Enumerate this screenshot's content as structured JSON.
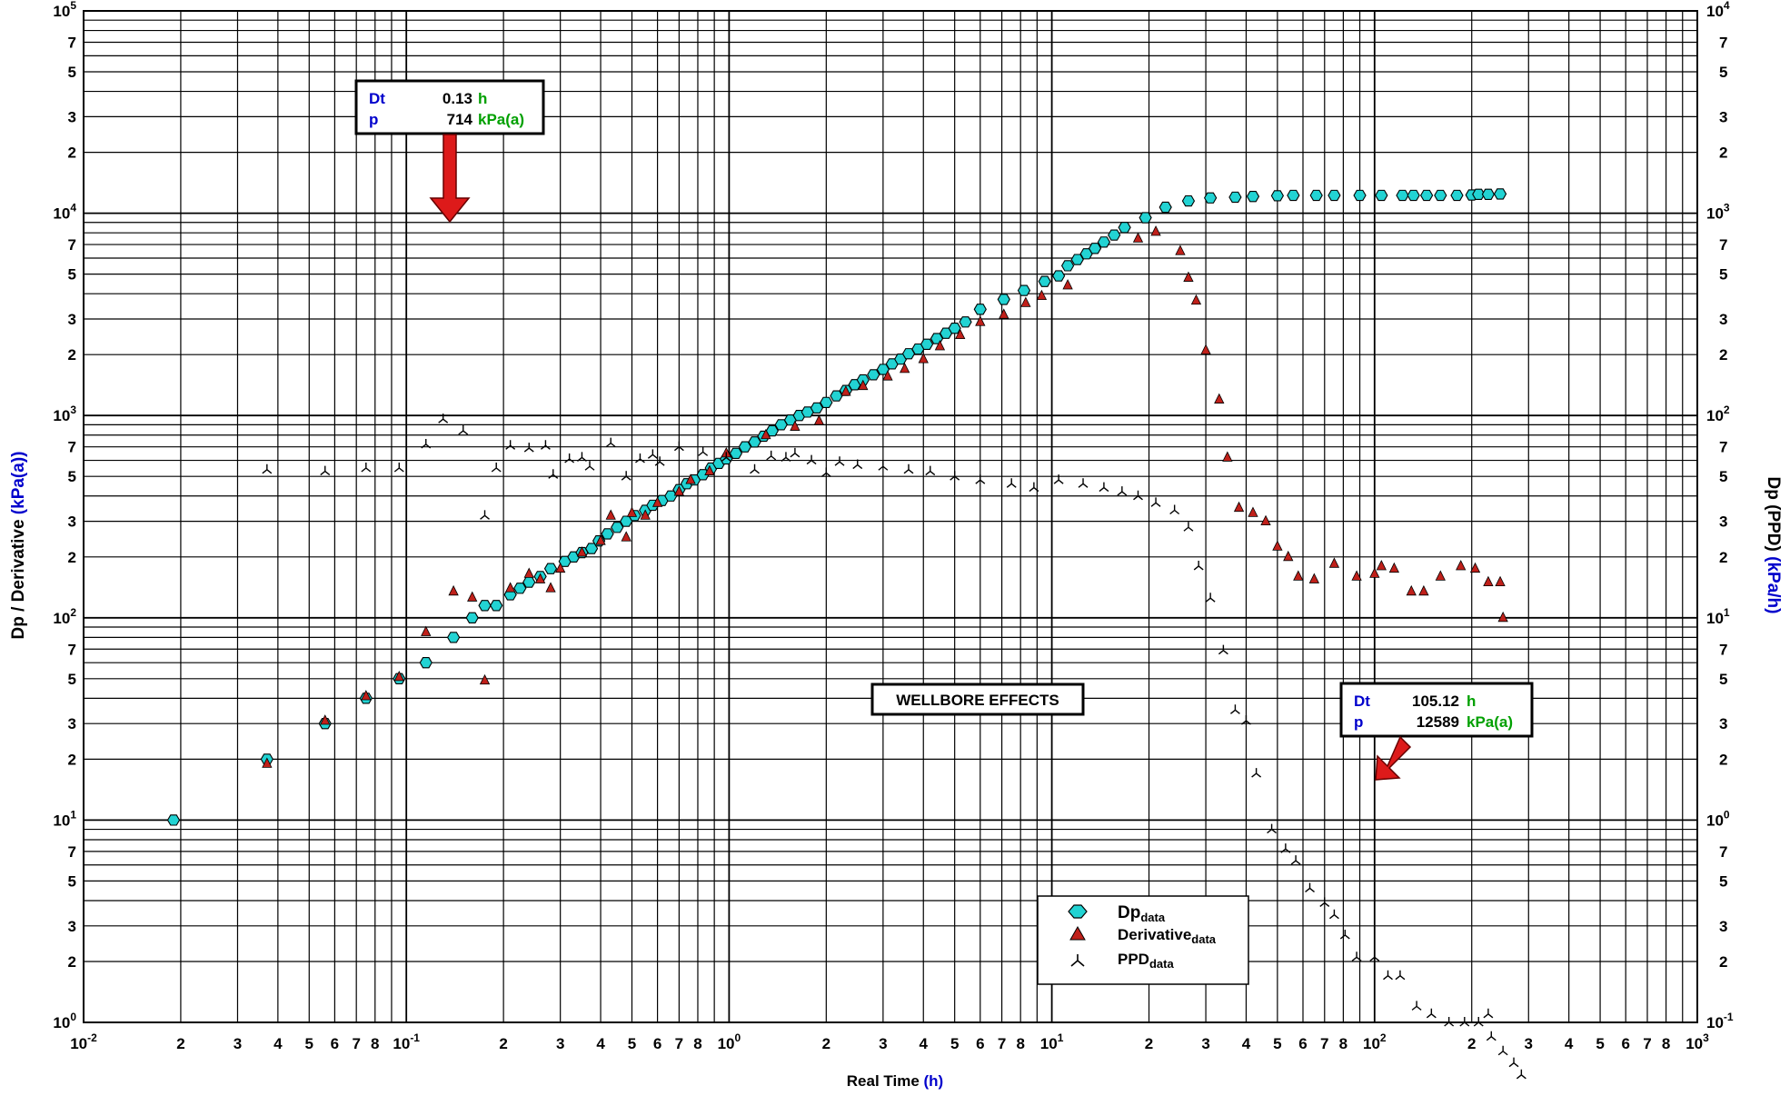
{
  "colors": {
    "dp_fill": "#22d3d3",
    "derivative_fill": "#c0201a",
    "ppd_stroke": "#000000",
    "label_blue": "#0000cc",
    "label_green": "#00a000",
    "arrow_red": "#dd1a1a"
  },
  "axes": {
    "xlabel": "Real Time",
    "xlabel_unit": "(h)",
    "ylabel_left": "Dp / Derivative",
    "ylabel_left_unit": "(kPa(a))",
    "ylabel_right": "Dp (PPD)",
    "ylabel_right_unit": "(kPa/h)"
  },
  "annotations": {
    "callout1": {
      "dt_label": "Dt",
      "dt_value": "0.13",
      "dt_unit": "h",
      "p_label": "p",
      "p_value": "714",
      "p_unit": "kPa(a)",
      "target_time": 0.13,
      "target_value": 9600
    },
    "callout2": {
      "dt_label": "Dt",
      "dt_value": "105.12",
      "dt_unit": "h",
      "p_label": "p",
      "p_value": "12589",
      "p_unit": "kPa(a)",
      "target_time": 105,
      "target_value": 17
    },
    "region_label": "WELLBORE EFFECTS"
  },
  "legend": {
    "dp": {
      "main": "Dp",
      "sub": "data",
      "icon": "cyan-hexagon-marker"
    },
    "derivative": {
      "main": "Derivative",
      "sub": "data",
      "icon": "red-triangle-marker"
    },
    "ppd": {
      "main": "PPD",
      "sub": "data",
      "icon": "tri-star-marker"
    }
  },
  "chart_data": {
    "type": "scatter",
    "x_scale": "log",
    "y_scale": "log",
    "xlim": [
      0.01,
      1000
    ],
    "ylim": [
      1,
      100000
    ],
    "ylim_right": [
      0.1,
      10000
    ],
    "grid": true,
    "legend_position": "bottom-center",
    "x_major_ticks": [
      {
        "base": "10",
        "exp": "-2"
      },
      {
        "base": "10",
        "exp": "-1"
      },
      {
        "base": "10",
        "exp": "0"
      },
      {
        "base": "10",
        "exp": "1"
      },
      {
        "base": "10",
        "exp": "2"
      },
      {
        "base": "10",
        "exp": "3"
      }
    ],
    "y_left_major_ticks": [
      {
        "base": "10",
        "exp": "0"
      },
      {
        "base": "10",
        "exp": "1"
      },
      {
        "base": "10",
        "exp": "2"
      },
      {
        "base": "10",
        "exp": "3"
      },
      {
        "base": "10",
        "exp": "4"
      },
      {
        "base": "10",
        "exp": "5"
      }
    ],
    "y_right_major_ticks": [
      {
        "base": "10",
        "exp": "-1"
      },
      {
        "base": "10",
        "exp": "0"
      },
      {
        "base": "10",
        "exp": "1"
      },
      {
        "base": "10",
        "exp": "2"
      },
      {
        "base": "10",
        "exp": "3"
      },
      {
        "base": "10",
        "exp": "4"
      }
    ],
    "minor_tick_labels": [
      "2",
      "3",
      "4",
      "5",
      "6",
      "7",
      "8"
    ],
    "y_minor_tick_labels": [
      "2",
      "3",
      "5",
      "7"
    ],
    "series": [
      {
        "name": "Dp_data",
        "marker": "hexagon",
        "axis": "left",
        "points": [
          [
            0.019,
            10
          ],
          [
            0.037,
            20
          ],
          [
            0.056,
            30
          ],
          [
            0.075,
            40
          ],
          [
            0.095,
            50
          ],
          [
            0.115,
            60
          ],
          [
            0.14,
            80
          ],
          [
            0.16,
            100
          ],
          [
            0.175,
            115
          ],
          [
            0.19,
            115
          ],
          [
            0.21,
            130
          ],
          [
            0.225,
            140
          ],
          [
            0.24,
            150
          ],
          [
            0.26,
            160
          ],
          [
            0.28,
            175
          ],
          [
            0.31,
            190
          ],
          [
            0.33,
            200
          ],
          [
            0.35,
            210
          ],
          [
            0.375,
            220
          ],
          [
            0.395,
            240
          ],
          [
            0.42,
            260
          ],
          [
            0.45,
            280
          ],
          [
            0.48,
            300
          ],
          [
            0.51,
            320
          ],
          [
            0.55,
            340
          ],
          [
            0.58,
            360
          ],
          [
            0.62,
            380
          ],
          [
            0.66,
            400
          ],
          [
            0.7,
            430
          ],
          [
            0.74,
            460
          ],
          [
            0.78,
            480
          ],
          [
            0.83,
            510
          ],
          [
            0.88,
            550
          ],
          [
            0.93,
            580
          ],
          [
            0.98,
            610
          ],
          [
            1.05,
            650
          ],
          [
            1.12,
            700
          ],
          [
            1.2,
            740
          ],
          [
            1.28,
            790
          ],
          [
            1.36,
            840
          ],
          [
            1.45,
            900
          ],
          [
            1.55,
            950
          ],
          [
            1.65,
            1000
          ],
          [
            1.75,
            1040
          ],
          [
            1.87,
            1090
          ],
          [
            2.0,
            1160
          ],
          [
            2.15,
            1250
          ],
          [
            2.3,
            1330
          ],
          [
            2.45,
            1420
          ],
          [
            2.6,
            1500
          ],
          [
            2.8,
            1590
          ],
          [
            3.0,
            1690
          ],
          [
            3.2,
            1800
          ],
          [
            3.4,
            1900
          ],
          [
            3.6,
            2020
          ],
          [
            3.85,
            2130
          ],
          [
            4.1,
            2250
          ],
          [
            4.4,
            2400
          ],
          [
            4.7,
            2550
          ],
          [
            5.0,
            2700
          ],
          [
            5.4,
            2900
          ],
          [
            6.0,
            3350
          ],
          [
            7.1,
            3750
          ],
          [
            8.2,
            4150
          ],
          [
            9.5,
            4600
          ],
          [
            10.5,
            4900
          ],
          [
            11.2,
            5500
          ],
          [
            12.0,
            5900
          ],
          [
            12.8,
            6300
          ],
          [
            13.6,
            6700
          ],
          [
            14.5,
            7200
          ],
          [
            15.6,
            7800
          ],
          [
            16.8,
            8500
          ],
          [
            19.5,
            9500
          ],
          [
            22.5,
            10700
          ],
          [
            26.5,
            11500
          ],
          [
            31.0,
            11900
          ],
          [
            37.0,
            12000
          ],
          [
            42.0,
            12100
          ],
          [
            50.0,
            12200
          ],
          [
            56.0,
            12250
          ],
          [
            66.0,
            12250
          ],
          [
            75.0,
            12250
          ],
          [
            90.0,
            12250
          ],
          [
            105.0,
            12250
          ],
          [
            122.0,
            12250
          ],
          [
            132.0,
            12250
          ],
          [
            145.0,
            12250
          ],
          [
            160.0,
            12250
          ],
          [
            180.0,
            12250
          ],
          [
            200.0,
            12300
          ],
          [
            210.0,
            12400
          ],
          [
            225.0,
            12400
          ],
          [
            245.0,
            12450
          ]
        ]
      },
      {
        "name": "Derivative_data",
        "marker": "triangle",
        "axis": "left",
        "points": [
          [
            0.037,
            19
          ],
          [
            0.056,
            31
          ],
          [
            0.075,
            41
          ],
          [
            0.095,
            51
          ],
          [
            0.115,
            85
          ],
          [
            0.14,
            135
          ],
          [
            0.16,
            126
          ],
          [
            0.175,
            49
          ],
          [
            0.21,
            140
          ],
          [
            0.24,
            165
          ],
          [
            0.26,
            155
          ],
          [
            0.28,
            140
          ],
          [
            0.3,
            175
          ],
          [
            0.35,
            210
          ],
          [
            0.4,
            240
          ],
          [
            0.43,
            320
          ],
          [
            0.48,
            250
          ],
          [
            0.5,
            330
          ],
          [
            0.55,
            320
          ],
          [
            0.6,
            370
          ],
          [
            0.7,
            420
          ],
          [
            0.76,
            480
          ],
          [
            0.87,
            530
          ],
          [
            0.98,
            650
          ],
          [
            1.3,
            800
          ],
          [
            1.6,
            880
          ],
          [
            1.9,
            940
          ],
          [
            2.3,
            1310
          ],
          [
            2.6,
            1400
          ],
          [
            3.1,
            1560
          ],
          [
            3.5,
            1700
          ],
          [
            4.0,
            1900
          ],
          [
            4.5,
            2200
          ],
          [
            5.2,
            2500
          ],
          [
            6.0,
            2900
          ],
          [
            7.1,
            3150
          ],
          [
            8.3,
            3600
          ],
          [
            9.3,
            3900
          ],
          [
            11.2,
            4400
          ],
          [
            18.5,
            7500
          ],
          [
            21.0,
            8100
          ],
          [
            25.0,
            6500
          ],
          [
            26.5,
            4800
          ],
          [
            28.0,
            3700
          ],
          [
            30.0,
            2100
          ],
          [
            33.0,
            1200
          ],
          [
            35.0,
            620
          ],
          [
            38.0,
            350
          ],
          [
            42.0,
            330
          ],
          [
            46.0,
            300
          ],
          [
            50.0,
            225
          ],
          [
            54.0,
            200
          ],
          [
            58.0,
            160
          ],
          [
            65.0,
            155
          ],
          [
            75.0,
            185
          ],
          [
            88.0,
            160
          ],
          [
            100.0,
            165
          ],
          [
            105.0,
            180
          ],
          [
            115.0,
            175
          ],
          [
            130.0,
            135
          ],
          [
            142.0,
            135
          ],
          [
            160.0,
            160
          ],
          [
            185.0,
            180
          ],
          [
            205.0,
            175
          ],
          [
            225.0,
            150
          ],
          [
            245.0,
            150
          ],
          [
            250.0,
            100
          ]
        ]
      },
      {
        "name": "PPD_data",
        "marker": "tristar",
        "axis": "right",
        "points": [
          [
            0.037,
            54
          ],
          [
            0.056,
            53
          ],
          [
            0.075,
            55
          ],
          [
            0.095,
            55
          ],
          [
            0.115,
            72
          ],
          [
            0.13,
            96
          ],
          [
            0.15,
            84
          ],
          [
            0.175,
            32
          ],
          [
            0.19,
            55
          ],
          [
            0.21,
            71
          ],
          [
            0.24,
            69
          ],
          [
            0.27,
            71
          ],
          [
            0.285,
            51
          ],
          [
            0.32,
            61
          ],
          [
            0.35,
            62
          ],
          [
            0.37,
            56
          ],
          [
            0.43,
            73
          ],
          [
            0.48,
            50
          ],
          [
            0.53,
            61
          ],
          [
            0.58,
            64
          ],
          [
            0.61,
            59
          ],
          [
            0.7,
            70
          ],
          [
            0.83,
            66
          ],
          [
            0.98,
            62
          ],
          [
            1.2,
            54
          ],
          [
            1.35,
            63
          ],
          [
            1.5,
            62
          ],
          [
            1.6,
            65
          ],
          [
            1.8,
            60
          ],
          [
            2.0,
            52
          ],
          [
            2.2,
            59
          ],
          [
            2.5,
            57
          ],
          [
            3.0,
            56
          ],
          [
            3.6,
            54
          ],
          [
            4.2,
            53
          ],
          [
            5.0,
            50
          ],
          [
            6.0,
            48
          ],
          [
            7.5,
            46
          ],
          [
            8.8,
            44
          ],
          [
            10.5,
            48
          ],
          [
            12.5,
            46
          ],
          [
            14.5,
            44
          ],
          [
            16.5,
            42
          ],
          [
            18.5,
            40
          ],
          [
            21.0,
            37
          ],
          [
            24.0,
            34
          ],
          [
            26.5,
            28
          ],
          [
            28.5,
            18
          ],
          [
            31.0,
            12.5
          ],
          [
            34.0,
            6.9
          ],
          [
            37.0,
            3.5
          ],
          [
            40.0,
            3.1
          ],
          [
            43.0,
            1.7
          ],
          [
            48.0,
            0.9
          ],
          [
            53.0,
            0.72
          ],
          [
            57.0,
            0.63
          ],
          [
            63.0,
            0.46
          ],
          [
            70.0,
            0.39
          ],
          [
            75.0,
            0.34
          ],
          [
            81.0,
            0.27
          ],
          [
            88.0,
            0.21
          ],
          [
            100.0,
            0.21
          ],
          [
            110.0,
            0.17
          ],
          [
            120.0,
            0.17
          ],
          [
            135.0,
            0.12
          ],
          [
            150.0,
            0.11
          ],
          [
            170.0,
            0.1
          ],
          [
            190.0,
            0.1
          ],
          [
            210.0,
            0.1
          ],
          [
            225.0,
            0.11
          ],
          [
            230.0,
            0.085
          ],
          [
            250.0,
            0.072
          ],
          [
            270.0,
            0.063
          ],
          [
            285.0,
            0.055
          ],
          [
            290.0,
            0.04
          ]
        ]
      }
    ]
  }
}
